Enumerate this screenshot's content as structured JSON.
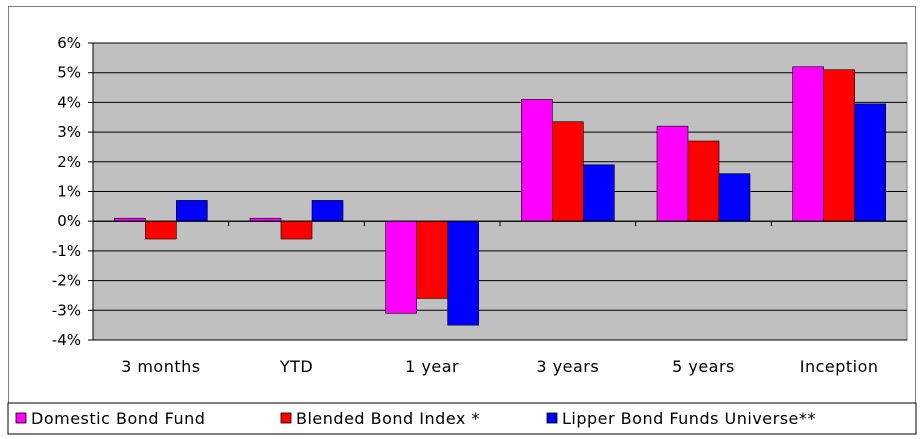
{
  "chart_data": {
    "type": "bar",
    "categories": [
      "3 months",
      "YTD",
      "1 year",
      "3 years",
      "5 years",
      "Inception"
    ],
    "series": [
      {
        "name": "Domestic Bond Fund",
        "color": "#ff00ff",
        "values": [
          0.1,
          0.1,
          -3.1,
          4.1,
          3.2,
          5.2
        ]
      },
      {
        "name": "Blended Bond Index *",
        "color": "#ff0000",
        "values": [
          -0.6,
          -0.6,
          -2.6,
          3.35,
          2.7,
          5.1
        ]
      },
      {
        "name": "Lipper Bond Funds Universe**",
        "color": "#0000ff",
        "values": [
          0.7,
          0.7,
          -3.5,
          1.9,
          1.6,
          3.95
        ]
      }
    ],
    "ylim": [
      -4,
      6
    ],
    "yticks": [
      "6%",
      "5%",
      "4%",
      "3%",
      "2%",
      "1%",
      "0%",
      "-1%",
      "-2%",
      "-3%",
      "-4%"
    ],
    "grid": true,
    "plot_background": "#c0c0c0",
    "legend_position": "bottom",
    "title": "",
    "xlabel": "",
    "ylabel": ""
  }
}
